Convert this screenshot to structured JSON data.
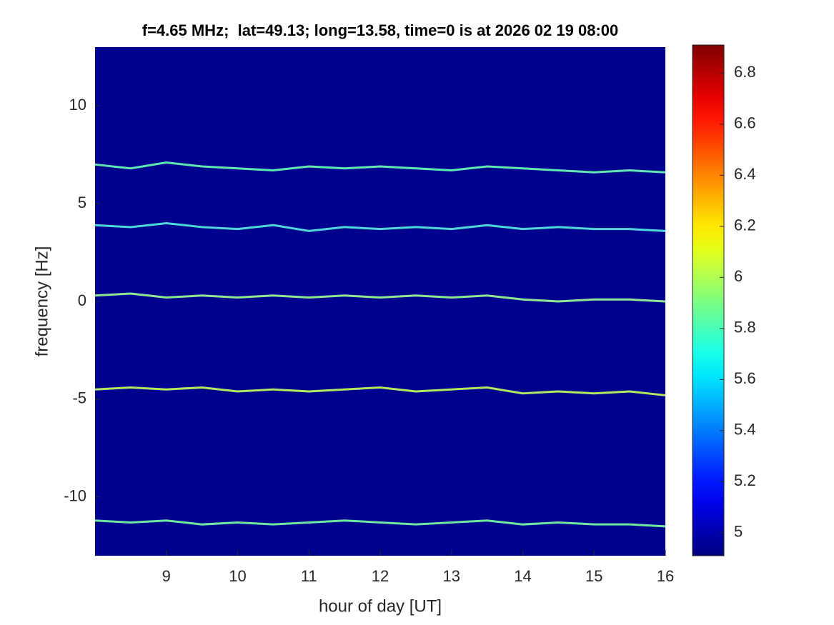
{
  "chart_data": {
    "type": "spectrogram",
    "title": "f=4.65 MHz;  lat=49.13; long=13.58, time=0 is at 2026 02 19 08:00",
    "x_label": "hour of day [UT]",
    "y_label": "frequency [Hz]",
    "xlim": [
      8,
      16
    ],
    "xticks": [
      9,
      10,
      11,
      12,
      13,
      14,
      15,
      16
    ],
    "ylim": [
      -13,
      13
    ],
    "yticks": [
      -10,
      -5,
      0,
      5,
      10
    ],
    "background": "#00008f",
    "colormap": "jet",
    "clim": [
      4.91,
      6.91
    ],
    "cticks": [
      5,
      5.2,
      5.4,
      5.6,
      5.8,
      6,
      6.2,
      6.4,
      6.6,
      6.8
    ],
    "x": [
      8,
      8.5,
      9,
      9.5,
      10,
      10.5,
      11,
      11.5,
      12,
      12.5,
      13,
      13.5,
      14,
      14.5,
      15,
      15.5,
      16
    ],
    "series": [
      {
        "color": "#5fe8b0",
        "values": [
          7.0,
          6.8,
          7.1,
          6.9,
          6.8,
          6.7,
          6.9,
          6.8,
          6.9,
          6.8,
          6.7,
          6.9,
          6.8,
          6.7,
          6.6,
          6.7,
          6.6
        ]
      },
      {
        "color": "#4fd8d8",
        "values": [
          3.9,
          3.8,
          4.0,
          3.8,
          3.7,
          3.9,
          3.6,
          3.8,
          3.7,
          3.8,
          3.7,
          3.9,
          3.7,
          3.8,
          3.7,
          3.7,
          3.6
        ]
      },
      {
        "color": "#8fe890",
        "values": [
          0.3,
          0.4,
          0.2,
          0.3,
          0.2,
          0.3,
          0.2,
          0.3,
          0.2,
          0.3,
          0.2,
          0.3,
          0.1,
          0.0,
          0.1,
          0.1,
          0.0
        ]
      },
      {
        "color": "#b0e860",
        "values": [
          -4.5,
          -4.4,
          -4.5,
          -4.4,
          -4.6,
          -4.5,
          -4.6,
          -4.5,
          -4.4,
          -4.6,
          -4.5,
          -4.4,
          -4.7,
          -4.6,
          -4.7,
          -4.6,
          -4.8
        ]
      },
      {
        "color": "#6fe8a0",
        "values": [
          -11.2,
          -11.3,
          -11.2,
          -11.4,
          -11.3,
          -11.4,
          -11.3,
          -11.2,
          -11.3,
          -11.4,
          -11.3,
          -11.2,
          -11.4,
          -11.3,
          -11.4,
          -11.4,
          -11.5
        ]
      }
    ]
  }
}
